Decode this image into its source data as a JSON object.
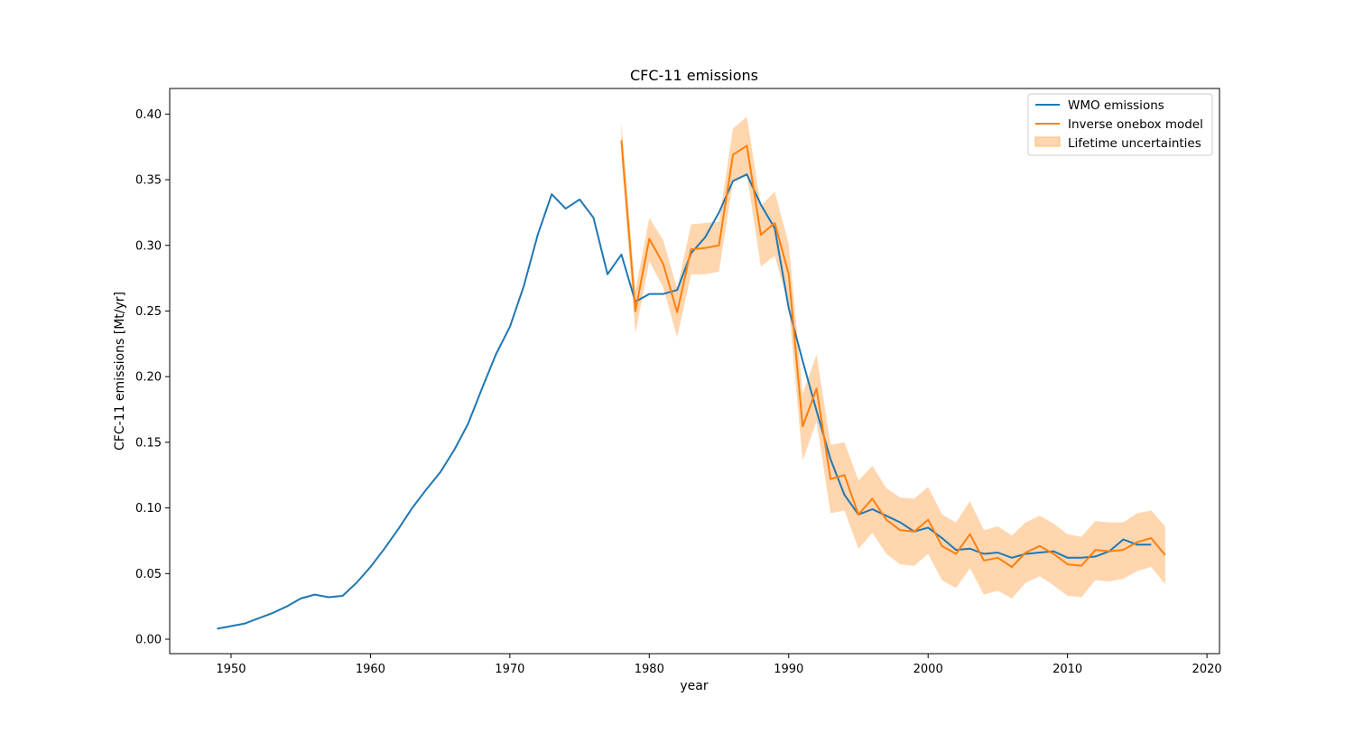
{
  "chart_data": {
    "type": "line",
    "title": "CFC-11 emissions",
    "xlabel": "year",
    "ylabel": "CFC-11 emissions [Mt/yr]",
    "xlim": [
      1945.6,
      2020.9
    ],
    "ylim": [
      -0.011,
      0.4195
    ],
    "xticks": [
      1950,
      1960,
      1970,
      1980,
      1990,
      2000,
      2010,
      2020
    ],
    "xtick_labels": [
      "1950",
      "1960",
      "1970",
      "1980",
      "1990",
      "2000",
      "2010",
      "2020"
    ],
    "yticks": [
      0.0,
      0.05,
      0.1,
      0.15,
      0.2,
      0.25,
      0.3,
      0.35,
      0.4
    ],
    "ytick_labels": [
      "0.00",
      "0.05",
      "0.10",
      "0.15",
      "0.20",
      "0.25",
      "0.30",
      "0.35",
      "0.40"
    ],
    "grid": false,
    "legend_position": "top-right",
    "colors": {
      "wmo": "#1f77b4",
      "model": "#ff7f0e",
      "band": "#ffbb78"
    },
    "series": [
      {
        "name": "WMO emissions",
        "x": [
          1949,
          1950,
          1951,
          1952,
          1953,
          1954,
          1955,
          1956,
          1957,
          1958,
          1959,
          1960,
          1961,
          1962,
          1963,
          1964,
          1965,
          1966,
          1967,
          1968,
          1969,
          1970,
          1971,
          1972,
          1973,
          1974,
          1975,
          1976,
          1977,
          1978,
          1979,
          1980,
          1981,
          1982,
          1983,
          1984,
          1985,
          1986,
          1987,
          1988,
          1989,
          1990,
          1991,
          1992,
          1993,
          1994,
          1995,
          1996,
          1997,
          1998,
          1999,
          2000,
          2001,
          2002,
          2003,
          2004,
          2005,
          2006,
          2007,
          2008,
          2009,
          2010,
          2011,
          2012,
          2013,
          2014,
          2015,
          2016
        ],
        "y": [
          0.008,
          0.01,
          0.012,
          0.016,
          0.02,
          0.025,
          0.031,
          0.034,
          0.032,
          0.033,
          0.043,
          0.055,
          0.069,
          0.084,
          0.1,
          0.114,
          0.127,
          0.144,
          0.164,
          0.191,
          0.217,
          0.238,
          0.269,
          0.308,
          0.339,
          0.328,
          0.335,
          0.321,
          0.278,
          0.293,
          0.257,
          0.263,
          0.263,
          0.266,
          0.294,
          0.306,
          0.325,
          0.349,
          0.354,
          0.331,
          0.313,
          0.252,
          0.212,
          0.174,
          0.137,
          0.11,
          0.095,
          0.099,
          0.094,
          0.089,
          0.082,
          0.085,
          0.077,
          0.068,
          0.069,
          0.065,
          0.066,
          0.062,
          0.065,
          0.066,
          0.067,
          0.062,
          0.062,
          0.063,
          0.067,
          0.076,
          0.072,
          0.072
        ]
      },
      {
        "name": "Inverse onebox model",
        "x": [
          1978,
          1979,
          1980,
          1981,
          1982,
          1983,
          1984,
          1985,
          1986,
          1987,
          1988,
          1989,
          1990,
          1991,
          1992,
          1993,
          1994,
          1995,
          1996,
          1997,
          1998,
          1999,
          2000,
          2001,
          2002,
          2003,
          2004,
          2005,
          2006,
          2007,
          2008,
          2009,
          2010,
          2011,
          2012,
          2013,
          2014,
          2015,
          2016,
          2017
        ],
        "y": [
          0.38,
          0.25,
          0.305,
          0.286,
          0.249,
          0.297,
          0.298,
          0.3,
          0.369,
          0.376,
          0.308,
          0.317,
          0.278,
          0.162,
          0.191,
          0.122,
          0.125,
          0.095,
          0.107,
          0.091,
          0.083,
          0.082,
          0.091,
          0.071,
          0.065,
          0.08,
          0.06,
          0.062,
          0.055,
          0.066,
          0.071,
          0.065,
          0.057,
          0.056,
          0.068,
          0.067,
          0.068,
          0.074,
          0.077,
          0.064
        ]
      }
    ],
    "band": {
      "name": "Lifetime uncertainties",
      "x": [
        1978,
        1979,
        1980,
        1981,
        1982,
        1983,
        1984,
        1985,
        1986,
        1987,
        1988,
        1989,
        1990,
        1991,
        1992,
        1993,
        1994,
        1995,
        1996,
        1997,
        1998,
        1999,
        2000,
        2001,
        2002,
        2003,
        2004,
        2005,
        2006,
        2007,
        2008,
        2009,
        2010,
        2011,
        2012,
        2013,
        2014,
        2015,
        2016,
        2017
      ],
      "upper": [
        0.394,
        0.265,
        0.321,
        0.304,
        0.267,
        0.316,
        0.317,
        0.318,
        0.389,
        0.398,
        0.33,
        0.341,
        0.301,
        0.187,
        0.217,
        0.148,
        0.15,
        0.121,
        0.132,
        0.115,
        0.108,
        0.107,
        0.116,
        0.095,
        0.089,
        0.105,
        0.083,
        0.086,
        0.079,
        0.089,
        0.094,
        0.088,
        0.08,
        0.078,
        0.09,
        0.089,
        0.089,
        0.096,
        0.098,
        0.086
      ],
      "lower": [
        0.366,
        0.233,
        0.288,
        0.268,
        0.23,
        0.278,
        0.278,
        0.28,
        0.349,
        0.354,
        0.284,
        0.292,
        0.254,
        0.136,
        0.166,
        0.096,
        0.098,
        0.069,
        0.081,
        0.065,
        0.057,
        0.056,
        0.065,
        0.045,
        0.039,
        0.054,
        0.034,
        0.037,
        0.031,
        0.043,
        0.048,
        0.041,
        0.033,
        0.032,
        0.045,
        0.044,
        0.046,
        0.052,
        0.055,
        0.042
      ]
    }
  }
}
